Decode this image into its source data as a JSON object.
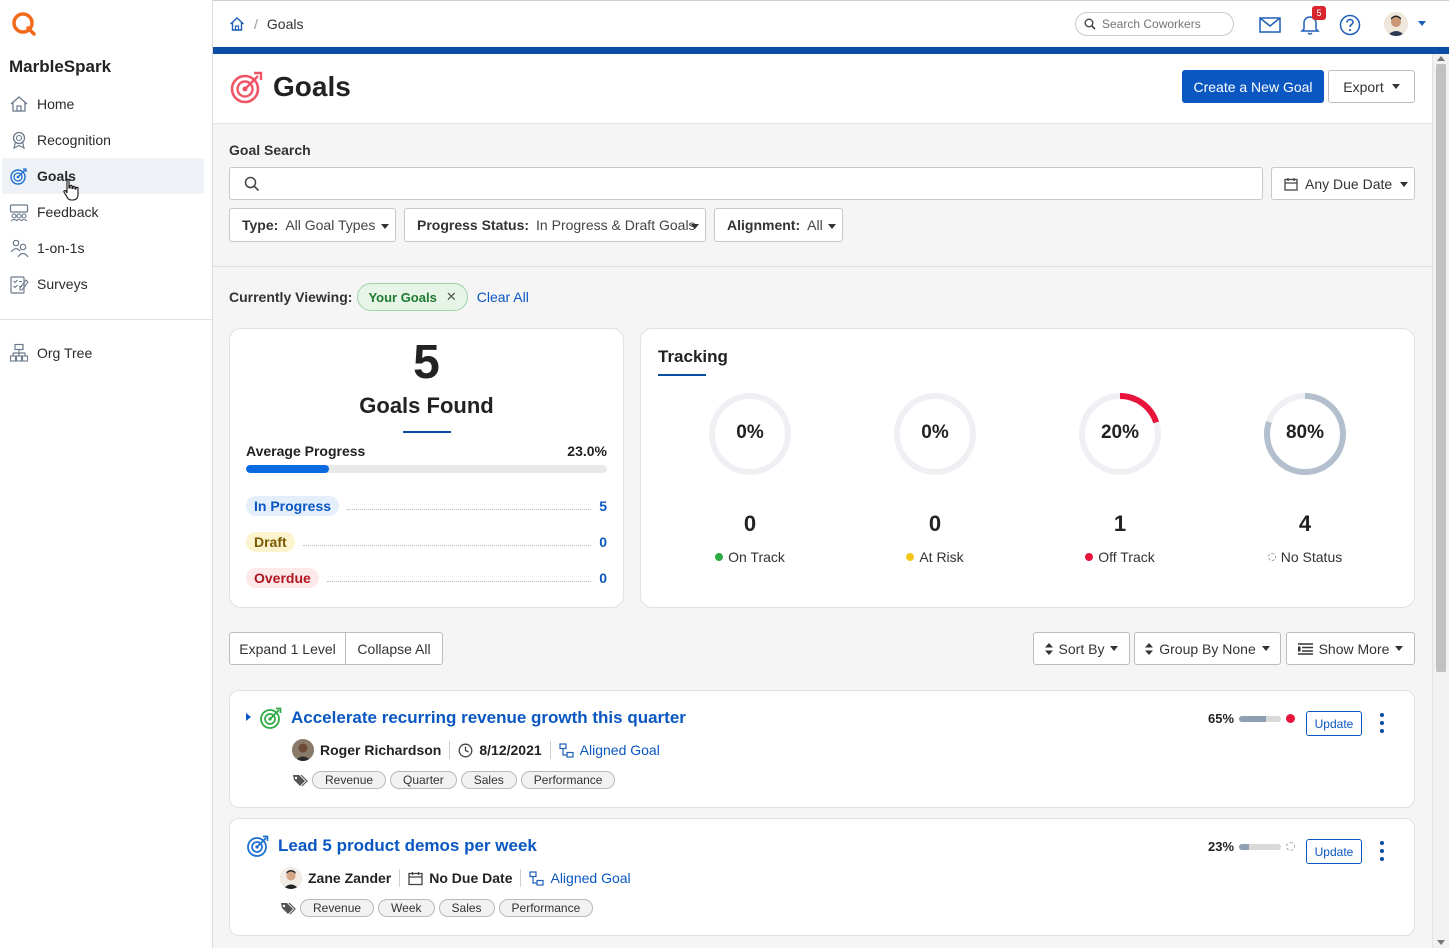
{
  "sidebar": {
    "brand": "MarbleSpark",
    "items": [
      {
        "label": "Home",
        "icon": "home-icon"
      },
      {
        "label": "Recognition",
        "icon": "recognition-icon"
      },
      {
        "label": "Goals",
        "icon": "goals-icon",
        "active": true
      },
      {
        "label": "Feedback",
        "icon": "feedback-icon"
      },
      {
        "label": "1-on-1s",
        "icon": "one-on-one-icon"
      },
      {
        "label": "Surveys",
        "icon": "surveys-icon"
      },
      {
        "label": "Org Tree",
        "icon": "org-tree-icon"
      }
    ]
  },
  "topbar": {
    "breadcrumb_current": "Goals",
    "search_placeholder": "Search Coworkers",
    "notification_count": "5"
  },
  "header": {
    "title": "Goals",
    "create_button": "Create a New Goal",
    "export_button": "Export"
  },
  "search": {
    "label": "Goal Search",
    "placeholder": "",
    "due_date": "Any Due Date",
    "filters": [
      {
        "name": "Type",
        "value": "All Goal Types"
      },
      {
        "name": "Progress Status",
        "value": "In Progress & Draft Goals"
      },
      {
        "name": "Alignment",
        "value": "All"
      }
    ]
  },
  "viewing": {
    "label": "Currently Viewing:",
    "pill": "Your Goals",
    "clear": "Clear All"
  },
  "summary": {
    "count": "5",
    "label": "Goals Found",
    "avg_label": "Average Progress",
    "avg_value": "23.0%",
    "avg_fraction": 0.23,
    "stats": [
      {
        "label": "In Progress",
        "count": "5",
        "bg": "#e5eefb",
        "fg": "#0a57c2"
      },
      {
        "label": "Draft",
        "count": "0",
        "bg": "#fcf3cf",
        "fg": "#7a5a00"
      },
      {
        "label": "Overdue",
        "count": "0",
        "bg": "#fde8ea",
        "fg": "#b0151f"
      }
    ]
  },
  "tracking": {
    "title": "Tracking",
    "gauges": [
      {
        "pct": "0%",
        "fraction": 0,
        "count": "0",
        "label": "On Track",
        "color": "#2eaa44"
      },
      {
        "pct": "0%",
        "fraction": 0,
        "count": "0",
        "label": "At Risk",
        "color": "#f4c81b"
      },
      {
        "pct": "20%",
        "fraction": 0.2,
        "count": "1",
        "label": "Off Track",
        "color": "#e8143c"
      },
      {
        "pct": "80%",
        "fraction": 0.8,
        "count": "4",
        "label": "No Status",
        "color": "#b3bfcd"
      }
    ]
  },
  "toolbar": {
    "expand": "Expand 1 Level",
    "collapse": "Collapse All",
    "sort": "Sort By",
    "group": "Group By None",
    "show_more": "Show More"
  },
  "goals": [
    {
      "title": "Accelerate recurring revenue growth this quarter",
      "owner": "Roger Richardson",
      "due": "8/12/2021",
      "aligned": "Aligned Goal",
      "tags": [
        "Revenue",
        "Quarter",
        "Sales",
        "Performance"
      ],
      "progress": "65%",
      "progress_fraction": 0.65,
      "status_color": "#e8143c",
      "update": "Update"
    },
    {
      "title": "Lead 5 product demos per week",
      "owner": "Zane Zander",
      "due": "No Due Date",
      "aligned": "Aligned Goal",
      "tags": [
        "Revenue",
        "Week",
        "Sales",
        "Performance"
      ],
      "progress": "23%",
      "progress_fraction": 0.23,
      "status_color": "none",
      "update": "Update"
    }
  ]
}
